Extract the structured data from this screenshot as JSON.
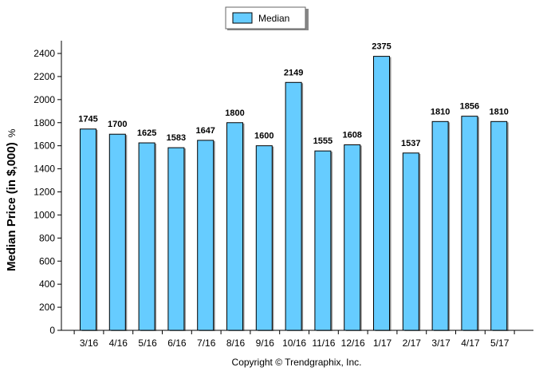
{
  "chart_data": {
    "type": "bar",
    "categories": [
      "3/16",
      "4/16",
      "5/16",
      "6/16",
      "7/16",
      "8/16",
      "9/16",
      "10/16",
      "11/16",
      "12/16",
      "1/17",
      "2/17",
      "3/17",
      "4/17",
      "5/17"
    ],
    "series": [
      {
        "name": "Median",
        "values": [
          1745,
          1700,
          1625,
          1583,
          1647,
          1800,
          1600,
          2149,
          1555,
          1608,
          2375,
          1537,
          1810,
          1856,
          1810
        ]
      }
    ],
    "ylabel": "Median Price (in $,000)",
    "ylabel_suffix": "%",
    "ylim": [
      0,
      2400
    ],
    "yticks": [
      0,
      200,
      400,
      600,
      800,
      1000,
      1200,
      1400,
      1600,
      1800,
      2000,
      2200,
      2400
    ],
    "legend_position": "top-center",
    "grid": false,
    "bar_color": "#66ccff",
    "bar_edge_color": "#000000",
    "credit": "Copyright © Trendgraphix, Inc."
  }
}
